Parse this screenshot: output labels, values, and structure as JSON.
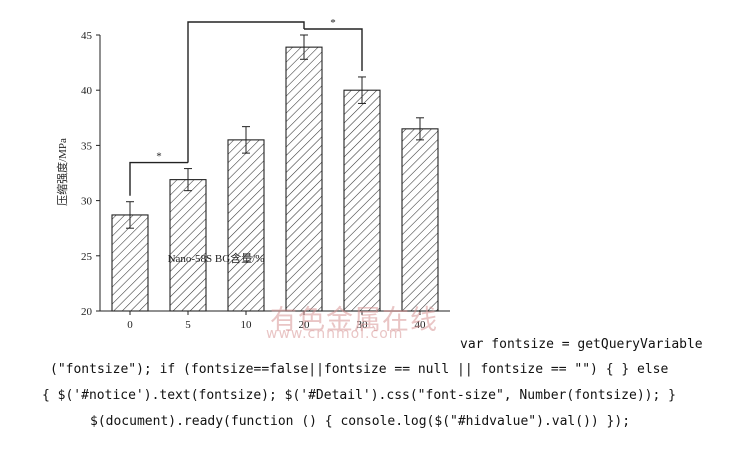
{
  "chart_data": {
    "type": "bar",
    "xlabel": "Nano-58S BG含量/%",
    "ylabel": "压缩强度/MPa",
    "categories": [
      "0",
      "5",
      "10",
      "20",
      "30",
      "40"
    ],
    "values": [
      28.7,
      31.9,
      35.5,
      43.9,
      40.0,
      36.5
    ],
    "errors": [
      1.2,
      1.0,
      1.2,
      1.1,
      1.2,
      1.0
    ],
    "ylim": [
      20,
      45
    ],
    "yticks": [
      "20",
      "25",
      "30",
      "35",
      "40",
      "45"
    ],
    "grid": false,
    "bar_fill": "diagonal-hatch",
    "significance": [
      {
        "from": 0,
        "to": 1,
        "label": "*"
      },
      {
        "from": 1,
        "to": 3,
        "label": ""
      },
      {
        "from": 3,
        "to": 4,
        "label": "*"
      }
    ]
  },
  "watermark": {
    "text_cn": "有色金属在线",
    "text_url": "www.cnnmol.com"
  },
  "code_lines": [
    "var fontsize = getQueryVariable",
    "(\"fontsize\"); if (fontsize==false||fontsize == null || fontsize == \"\") { } else",
    "{ $('#notice').text(fontsize); $('#Detail').css(\"font-size\", Number(fontsize)); }",
    "$(document).ready(function () { console.log($(\"#hidvalue\").val()) });"
  ],
  "colors": {
    "ink": "#222222",
    "watermark": "#d79696"
  }
}
